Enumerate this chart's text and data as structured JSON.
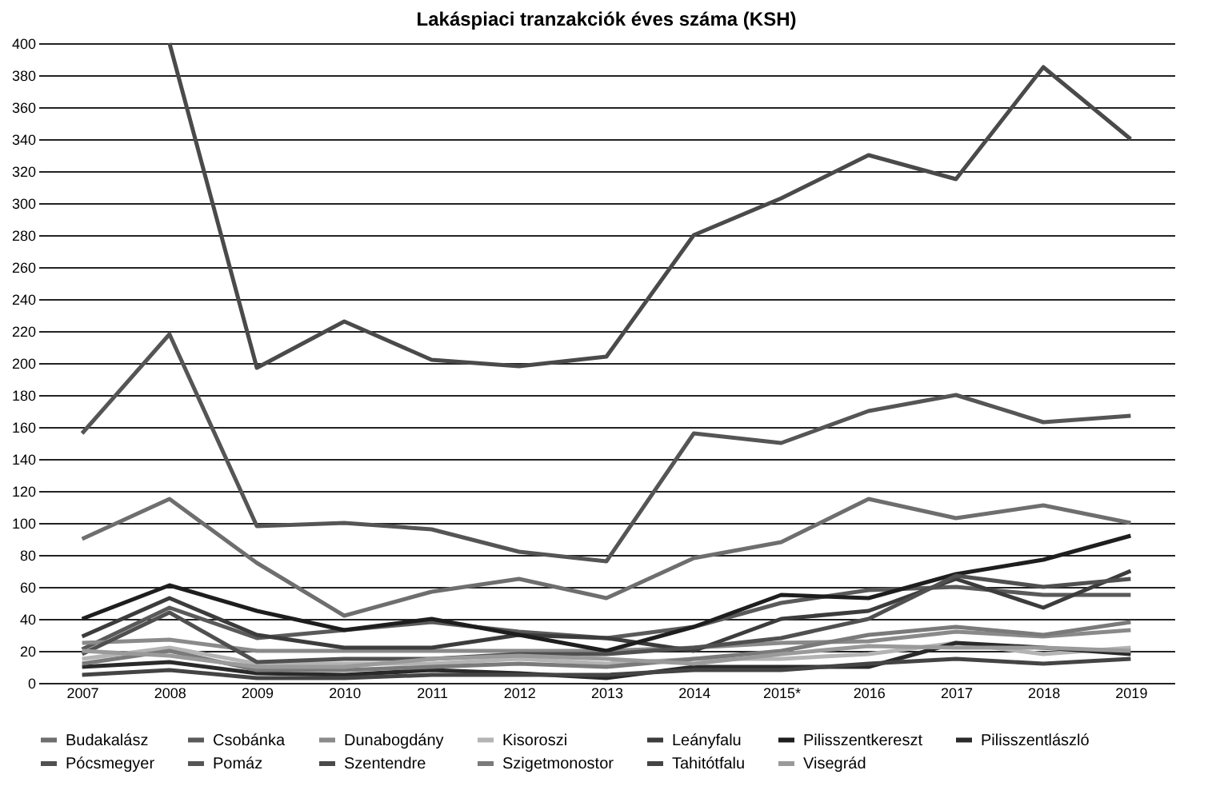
{
  "chart_data": {
    "type": "line",
    "title": "Lakáspiaci tranzakciók éves száma (KSH)",
    "categories": [
      "2007",
      "2008",
      "2009",
      "2010",
      "2011",
      "2012",
      "2013",
      "2014",
      "2015*",
      "2016",
      "2017",
      "2018",
      "2019"
    ],
    "series": [
      {
        "name": "Budakalász",
        "color": "#6e6e6e",
        "values": [
          90,
          115,
          75,
          42,
          57,
          65,
          53,
          78,
          88,
          115,
          103,
          111,
          100
        ]
      },
      {
        "name": "Csobánka",
        "color": "#5a5a5a",
        "values": [
          21,
          47,
          28,
          33,
          38,
          32,
          28,
          35,
          50,
          58,
          60,
          55,
          55
        ]
      },
      {
        "name": "Dunabogdány",
        "color": "#8a8a8a",
        "values": [
          25,
          27,
          20,
          20,
          20,
          20,
          20,
          22,
          25,
          26,
          32,
          29,
          33
        ]
      },
      {
        "name": "Kisoroszi",
        "color": "#b4b4b4",
        "values": [
          15,
          22,
          12,
          12,
          12,
          15,
          12,
          15,
          15,
          18,
          25,
          18,
          22
        ]
      },
      {
        "name": "Leányfalu",
        "color": "#3c3c3c",
        "values": [
          29,
          53,
          30,
          22,
          22,
          30,
          28,
          20,
          40,
          45,
          65,
          47,
          70
        ]
      },
      {
        "name": "Pilisszentkereszt",
        "color": "#1e1e1e",
        "values": [
          40,
          61,
          45,
          33,
          40,
          30,
          20,
          35,
          55,
          53,
          68,
          77,
          92
        ]
      },
      {
        "name": "Pilisszentlászló",
        "color": "#2a2a2a",
        "values": [
          10,
          13,
          6,
          5,
          8,
          6,
          3,
          10,
          10,
          10,
          25,
          22,
          18
        ]
      },
      {
        "name": "Pócsmegyer",
        "color": "#505050",
        "values": [
          18,
          44,
          13,
          15,
          15,
          18,
          18,
          22,
          28,
          40,
          67,
          60,
          65
        ]
      },
      {
        "name": "Pomáz",
        "color": "#555555",
        "values": [
          156,
          218,
          98,
          100,
          96,
          82,
          76,
          156,
          150,
          170,
          180,
          163,
          167
        ]
      },
      {
        "name": "Szentendre",
        "color": "#4a4a4a",
        "values": [
          null,
          400,
          197,
          226,
          202,
          198,
          204,
          280,
          303,
          330,
          315,
          385,
          340
        ]
      },
      {
        "name": "Szigetmonostor",
        "color": "#7a7a7a",
        "values": [
          12,
          20,
          8,
          8,
          10,
          12,
          10,
          15,
          20,
          30,
          35,
          30,
          38
        ]
      },
      {
        "name": "Tahitótfalu",
        "color": "#444444",
        "values": [
          5,
          8,
          3,
          3,
          5,
          5,
          5,
          8,
          8,
          12,
          15,
          12,
          15
        ]
      },
      {
        "name": "Visegrád",
        "color": "#9a9a9a",
        "values": [
          20,
          17,
          10,
          10,
          15,
          17,
          15,
          12,
          18,
          23,
          22,
          22,
          20
        ]
      }
    ],
    "ylim": [
      0,
      400
    ],
    "yticks": [
      0,
      20,
      40,
      60,
      80,
      100,
      120,
      140,
      160,
      180,
      200,
      220,
      240,
      260,
      280,
      300,
      320,
      340,
      360,
      380,
      400
    ],
    "grid": "y",
    "legend": "bottom",
    "line_style": "solid",
    "marker": "none"
  }
}
